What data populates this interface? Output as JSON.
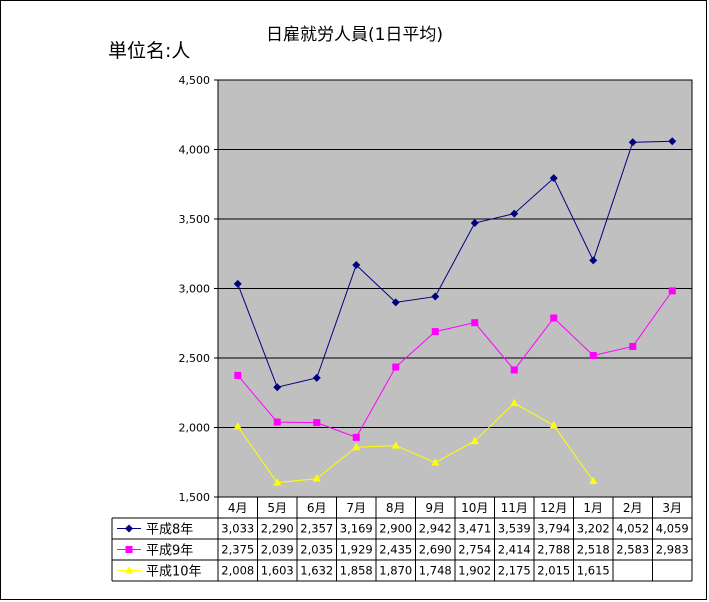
{
  "chart_data": {
    "type": "line",
    "title": "日雇就労人員(1日平均)",
    "unit_label": "単位名:人",
    "categories": [
      "4月",
      "5月",
      "6月",
      "7月",
      "8月",
      "9月",
      "10月",
      "11月",
      "12月",
      "1月",
      "2月",
      "3月"
    ],
    "ylim": [
      1500,
      4500
    ],
    "yticks": [
      1500,
      2000,
      2500,
      3000,
      3500,
      4000,
      4500
    ],
    "ytick_labels": [
      "1,500",
      "2,000",
      "2,500",
      "3,000",
      "3,500",
      "4,000",
      "4,500"
    ],
    "grid": true,
    "legend": "data-table",
    "series": [
      {
        "name": "平成8年",
        "color": "#000080",
        "marker": "diamond",
        "values": [
          3033,
          2290,
          2357,
          3169,
          2900,
          2942,
          3471,
          3539,
          3794,
          3202,
          4052,
          4059
        ],
        "labels": [
          "3,033",
          "2,290",
          "2,357",
          "3,169",
          "2,900",
          "2,942",
          "3,471",
          "3,539",
          "3,794",
          "3,202",
          "4,052",
          "4,059"
        ]
      },
      {
        "name": "平成9年",
        "color": "#ff00ff",
        "marker": "square",
        "values": [
          2375,
          2039,
          2035,
          1929,
          2435,
          2690,
          2754,
          2414,
          2788,
          2518,
          2583,
          2983
        ],
        "labels": [
          "2,375",
          "2,039",
          "2,035",
          "1,929",
          "2,435",
          "2,690",
          "2,754",
          "2,414",
          "2,788",
          "2,518",
          "2,583",
          "2,983"
        ]
      },
      {
        "name": "平成10年",
        "color": "#ffff00",
        "marker": "triangle",
        "values": [
          2008,
          1603,
          1632,
          1858,
          1870,
          1748,
          1902,
          2175,
          2015,
          1615,
          null,
          null
        ],
        "labels": [
          "2,008",
          "1,603",
          "1,632",
          "1,858",
          "1,870",
          "1,748",
          "1,902",
          "2,175",
          "2,015",
          "1,615",
          "",
          ""
        ]
      }
    ]
  },
  "colors": {
    "plot_background": "#c0c0c0",
    "gridline": "#000000"
  }
}
